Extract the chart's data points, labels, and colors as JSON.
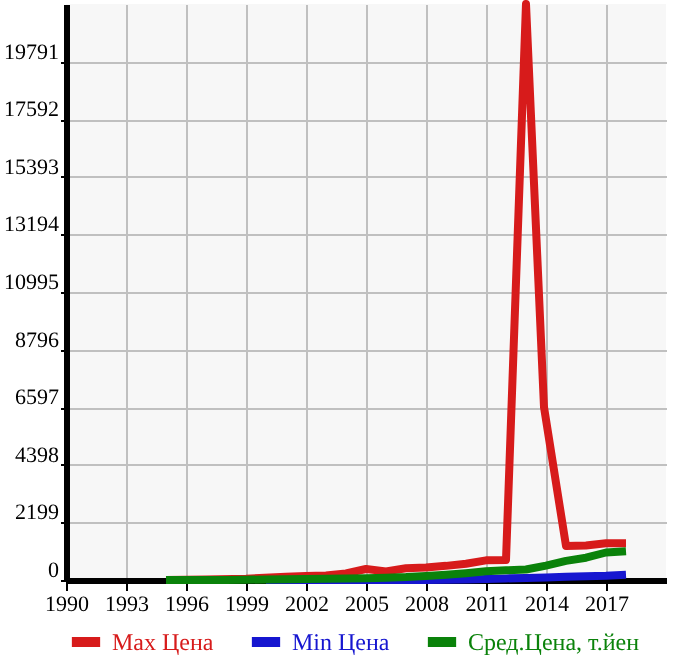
{
  "chart_data": {
    "type": "line",
    "x": [
      1995,
      1996,
      1997,
      1998,
      1999,
      2000,
      2001,
      2002,
      2003,
      2004,
      2005,
      2006,
      2007,
      2008,
      2009,
      2010,
      2011,
      2012,
      2013,
      2014,
      2015,
      2016,
      2017,
      2018
    ],
    "series": [
      {
        "name": "Max Цена",
        "color": "#d71b1b",
        "x": [
          1995,
          1997,
          1999,
          2001,
          2002,
          2003,
          2004,
          2005,
          2006,
          2007,
          2008,
          2009,
          2010,
          2011,
          2012,
          2013,
          2013.9,
          2015,
          2016,
          2017,
          2018
        ],
        "values": [
          0,
          20,
          50,
          120,
          150,
          170,
          250,
          420,
          330,
          450,
          480,
          540,
          620,
          750,
          760,
          21990,
          6600,
          1300,
          1320,
          1400,
          1400
        ]
      },
      {
        "name": "Min Цена",
        "color": "#1616d0",
        "values": [
          null,
          null,
          null,
          null,
          null,
          0,
          0,
          0,
          0,
          0,
          0,
          0,
          0,
          0,
          10,
          20,
          40,
          60,
          80,
          100,
          120,
          140,
          160,
          200
        ]
      },
      {
        "name": "Сред.Цена, т.йен",
        "color": "#0a820a",
        "values": [
          0,
          0,
          0,
          0,
          10,
          20,
          30,
          40,
          50,
          60,
          70,
          90,
          110,
          150,
          200,
          260,
          330,
          370,
          400,
          550,
          730,
          850,
          1050,
          1100
        ]
      }
    ],
    "xlim": [
      1990,
      2020
    ],
    "xticks": [
      1990,
      1993,
      1996,
      1999,
      2002,
      2005,
      2008,
      2011,
      2014,
      2017
    ],
    "ylim": [
      0,
      21990
    ],
    "yticks": [
      0,
      2199,
      4398,
      6597,
      8796,
      10995,
      13194,
      15393,
      17592,
      19791
    ],
    "grid": true,
    "legend": "bottom",
    "marker": "none",
    "line_style": "solid"
  }
}
